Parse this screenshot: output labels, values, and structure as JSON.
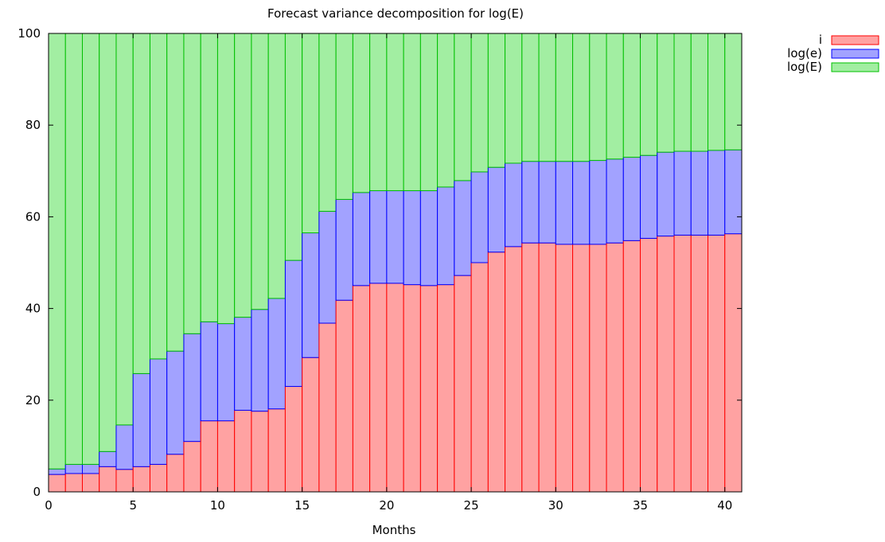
{
  "chart_data": {
    "type": "bar",
    "stacked": true,
    "title": "Forecast variance decomposition for log(E)",
    "xlabel": "Months",
    "ylabel": "",
    "xlim": [
      0,
      41
    ],
    "ylim": [
      0,
      100
    ],
    "x_ticks": [
      0,
      5,
      10,
      15,
      20,
      25,
      30,
      35,
      40
    ],
    "y_ticks": [
      0,
      20,
      40,
      60,
      80,
      100
    ],
    "grid": false,
    "legend_position": "top-right",
    "x": [
      0,
      1,
      2,
      3,
      4,
      5,
      6,
      7,
      8,
      9,
      10,
      11,
      12,
      13,
      14,
      15,
      16,
      17,
      18,
      19,
      20,
      21,
      22,
      23,
      24,
      25,
      26,
      27,
      28,
      29,
      30,
      31,
      32,
      33,
      34,
      35,
      36,
      37,
      38,
      39,
      40
    ],
    "series": [
      {
        "name": "i",
        "fill": "#ffa2a2",
        "stroke": "#ff0000",
        "values": [
          3.8,
          4.0,
          4.0,
          5.5,
          4.9,
          5.5,
          6.0,
          8.2,
          11.0,
          15.5,
          15.5,
          17.8,
          17.6,
          18.1,
          23.0,
          29.3,
          36.8,
          41.8,
          45.0,
          45.5,
          45.5,
          45.2,
          45.0,
          45.2,
          47.2,
          50.0,
          52.3,
          53.5,
          54.3,
          54.3,
          54.0,
          54.0,
          54.0,
          54.3,
          54.8,
          55.3,
          55.8,
          56.0,
          56.0,
          56.0,
          56.3
        ]
      },
      {
        "name": "log(e)",
        "fill": "#a2a2ff",
        "stroke": "#0000ff",
        "values": [
          1.2,
          2.0,
          2.0,
          3.3,
          9.7,
          20.3,
          23.0,
          22.5,
          23.5,
          21.6,
          21.2,
          20.3,
          22.2,
          24.1,
          27.5,
          27.2,
          24.4,
          22.0,
          20.3,
          20.2,
          20.2,
          20.5,
          20.7,
          21.3,
          20.7,
          19.8,
          18.5,
          18.2,
          17.8,
          17.8,
          18.1,
          18.1,
          18.3,
          18.3,
          18.2,
          18.1,
          18.3,
          18.3,
          18.3,
          18.5,
          18.3
        ]
      },
      {
        "name": "log(E)",
        "fill": "#a2eea2",
        "stroke": "#00c000",
        "values": [
          95.0,
          94.0,
          94.0,
          91.2,
          85.4,
          74.2,
          71.0,
          69.3,
          65.5,
          62.9,
          63.3,
          61.9,
          60.2,
          57.8,
          49.5,
          43.5,
          38.8,
          36.2,
          34.7,
          34.3,
          34.3,
          34.3,
          34.3,
          33.5,
          32.1,
          30.2,
          29.2,
          28.3,
          27.9,
          27.9,
          27.9,
          27.9,
          27.7,
          27.4,
          27.0,
          26.6,
          25.9,
          25.7,
          25.7,
          25.5,
          25.4
        ]
      }
    ]
  }
}
